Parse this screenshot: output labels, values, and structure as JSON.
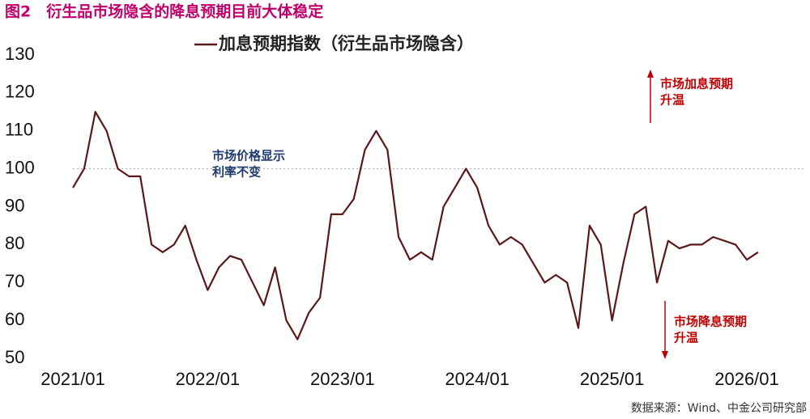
{
  "chart_data": {
    "type": "line",
    "title": "图2　衍生品市场隐含的降息预期目前大体稳定",
    "source": "数据来源：Wind、中金公司研究部",
    "x": [
      "2021/01",
      "2021/02",
      "2021/03",
      "2021/04",
      "2021/05",
      "2021/06",
      "2021/07",
      "2021/08",
      "2021/09",
      "2021/10",
      "2021/11",
      "2021/12",
      "2022/01",
      "2022/02",
      "2022/03",
      "2022/04",
      "2022/05",
      "2022/06",
      "2022/07",
      "2022/08",
      "2022/09",
      "2022/10",
      "2022/11",
      "2022/12",
      "2023/01",
      "2023/02",
      "2023/03",
      "2023/04",
      "2023/05",
      "2023/06",
      "2023/07",
      "2023/08",
      "2023/09",
      "2023/10",
      "2023/11",
      "2023/12",
      "2024/01",
      "2024/02",
      "2024/03",
      "2024/04",
      "2024/05",
      "2024/06",
      "2024/07",
      "2024/08",
      "2024/09",
      "2024/10",
      "2024/11",
      "2024/12",
      "2025/01",
      "2025/02",
      "2025/03",
      "2025/04",
      "2025/05",
      "2025/06",
      "2025/07",
      "2025/08",
      "2025/09",
      "2025/10",
      "2025/11",
      "2025/12",
      "2026/01",
      "2026/02"
    ],
    "series": [
      {
        "name": "加息预期指数（衍生品市场隐含）",
        "color": "#5a1818",
        "values": [
          95,
          100,
          115,
          110,
          100,
          98,
          98,
          80,
          78,
          80,
          85,
          76,
          68,
          74,
          77,
          76,
          70,
          64,
          74,
          60,
          55,
          62,
          66,
          88,
          88,
          92,
          105,
          110,
          105,
          82,
          76,
          78,
          76,
          90,
          95,
          100,
          95,
          85,
          80,
          82,
          80,
          75,
          70,
          72,
          70,
          58,
          85,
          80,
          60,
          75,
          88,
          90,
          70,
          81,
          79,
          80,
          80,
          82,
          81,
          80,
          76,
          78
        ]
      }
    ],
    "ylim": [
      50,
      130
    ],
    "yticks": [
      50,
      60,
      70,
      80,
      90,
      100,
      110,
      120,
      130
    ],
    "xticks": [
      "2021/01",
      "2022/01",
      "2023/01",
      "2024/01",
      "2025/01",
      "2026/01"
    ],
    "reference_line": 100,
    "annotations": [
      {
        "lines": [
          "市场价格显示",
          "利率不变"
        ],
        "color": "#1f3a6e"
      },
      {
        "lines": [
          "市场加息预期",
          "升温"
        ],
        "color": "#c00000"
      },
      {
        "lines": [
          "市场降息预期",
          "升温"
        ],
        "color": "#c00000"
      }
    ]
  }
}
